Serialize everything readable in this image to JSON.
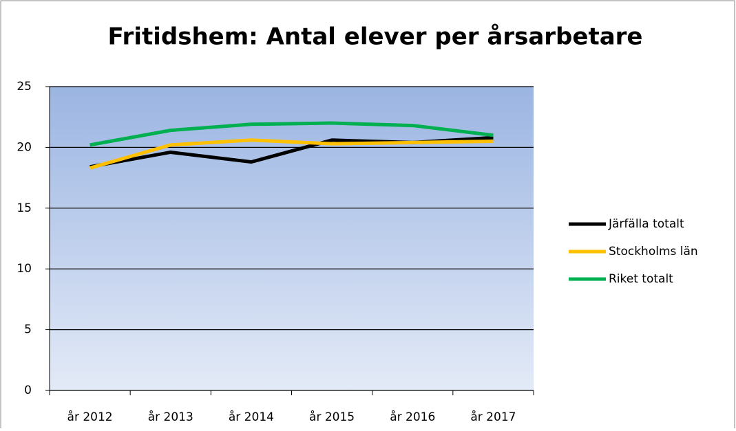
{
  "chart_data": {
    "type": "line",
    "title": "Fritidshem: Antal elever per årsarbetare",
    "categories": [
      "år 2012",
      "år 2013",
      "år 2014",
      "år 2015",
      "år 2016",
      "år 2017"
    ],
    "series": [
      {
        "name": "Järfälla totalt",
        "color": "#000000",
        "values": [
          18.4,
          19.6,
          18.8,
          20.6,
          20.4,
          20.8
        ]
      },
      {
        "name": "Stockholms län",
        "color": "#ffc000",
        "values": [
          18.3,
          20.2,
          20.6,
          20.3,
          20.4,
          20.5
        ]
      },
      {
        "name": "Riket totalt",
        "color": "#00b050",
        "values": [
          20.2,
          21.4,
          21.9,
          22.0,
          21.8,
          21.0
        ]
      }
    ],
    "ylim": [
      0,
      25
    ],
    "yticks": [
      0,
      5,
      10,
      15,
      20,
      25
    ],
    "grid": true,
    "legend": "right"
  }
}
